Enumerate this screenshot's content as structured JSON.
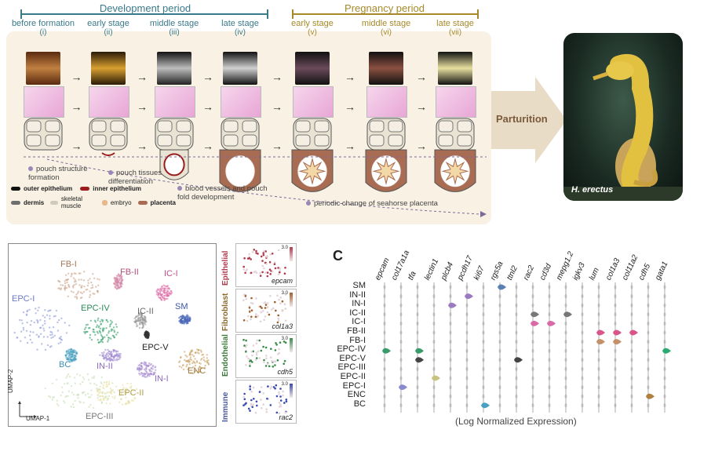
{
  "top": {
    "dev_period": "Development period",
    "preg_period": "Pregnancy period",
    "stages": [
      {
        "name": "before formation",
        "num": "(i)"
      },
      {
        "name": "early stage",
        "num": "(ii)"
      },
      {
        "name": "middle stage",
        "num": "(iii)"
      },
      {
        "name": "late stage",
        "num": "(iv)"
      },
      {
        "name": "early stage",
        "num": "(v)"
      },
      {
        "name": "middle stage",
        "num": "(vi)"
      },
      {
        "name": "late stage",
        "num": "(vii)"
      }
    ],
    "notes": {
      "n1": "pouch structure formation",
      "n2": "pouch tissues differentiation",
      "n3": "blood vessels and pouch fold development",
      "n4": "periodic change of seahorse placenta"
    },
    "legend": [
      {
        "label": "outer epithelium",
        "color": "#111111"
      },
      {
        "label": "inner epithelium",
        "color": "#9b1c1c"
      },
      {
        "label": "dermis",
        "color": "#6e6e6e"
      },
      {
        "label": "skeletal muscle",
        "color": "#cfcabb"
      },
      {
        "label": "embryo",
        "color": "#e6b88a"
      },
      {
        "label": "placenta",
        "color": "#a86c52"
      }
    ],
    "parturition": "Parturition",
    "species": "H. erectus"
  },
  "umap": {
    "clusters": [
      "FB-I",
      "FB-II",
      "IC-I",
      "EPC-I",
      "EPC-IV",
      "IC-II",
      "SM",
      "EPC-V",
      "BC",
      "IN-II",
      "ENC",
      "IN-I",
      "EPC-II",
      "EPC-III"
    ],
    "axis_y": "UMAP-2",
    "axis_x": "UMAP-1"
  },
  "feature": {
    "groups": [
      "Epithelial",
      "Fibroblast",
      "Endothelial",
      "Immune"
    ],
    "genes": [
      "epcam",
      "col1a3",
      "cdh5",
      "rac2"
    ],
    "scale_max": "3.0",
    "scale_min": "0.0"
  },
  "violin": {
    "panel_letter": "C",
    "genes": [
      "epcam",
      "col17a1a",
      "tfa",
      "lectin1",
      "plcb4",
      "pcdh17",
      "ki67",
      "rgs5a",
      "ttnl2",
      "rac2",
      "cd3d",
      "mepg1.2",
      "igkv3",
      "lum",
      "col1a3",
      "col11a2",
      "cdh5",
      "gata1"
    ],
    "clusters": [
      "SM",
      "IN-II",
      "IN-I",
      "IC-II",
      "IC-I",
      "FB-II",
      "FB-I",
      "EPC-IV",
      "EPC-V",
      "EPC-III",
      "EPC-II",
      "EPC-I",
      "ENC",
      "BC"
    ],
    "xlabel": "(Log Normalized Expression)",
    "highlights": [
      {
        "row": 0,
        "col": 7,
        "color": "#5a7fb5"
      },
      {
        "row": 1,
        "col": 5,
        "color": "#9b7bc0"
      },
      {
        "row": 2,
        "col": 4,
        "color": "#9b7bc0"
      },
      {
        "row": 3,
        "col": 9,
        "color": "#777777"
      },
      {
        "row": 3,
        "col": 11,
        "color": "#777777"
      },
      {
        "row": 4,
        "col": 9,
        "color": "#d86aa8"
      },
      {
        "row": 4,
        "col": 10,
        "color": "#d86aa8"
      },
      {
        "row": 5,
        "col": 13,
        "color": "#d9568a"
      },
      {
        "row": 5,
        "col": 14,
        "color": "#d9568a"
      },
      {
        "row": 5,
        "col": 15,
        "color": "#d9568a"
      },
      {
        "row": 6,
        "col": 13,
        "color": "#c4916a"
      },
      {
        "row": 6,
        "col": 14,
        "color": "#c4916a"
      },
      {
        "row": 7,
        "col": 0,
        "color": "#3a9a6a"
      },
      {
        "row": 7,
        "col": 2,
        "color": "#3a9a6a"
      },
      {
        "row": 8,
        "col": 2,
        "color": "#444444"
      },
      {
        "row": 8,
        "col": 8,
        "color": "#444444"
      },
      {
        "row": 10,
        "col": 3,
        "color": "#c9c283"
      },
      {
        "row": 11,
        "col": 1,
        "color": "#8a8ad0"
      },
      {
        "row": 12,
        "col": 16,
        "color": "#b08040"
      },
      {
        "row": 13,
        "col": 6,
        "color": "#4aa0c0"
      },
      {
        "row": 7,
        "col": 17,
        "color": "#2aaa70"
      }
    ]
  }
}
